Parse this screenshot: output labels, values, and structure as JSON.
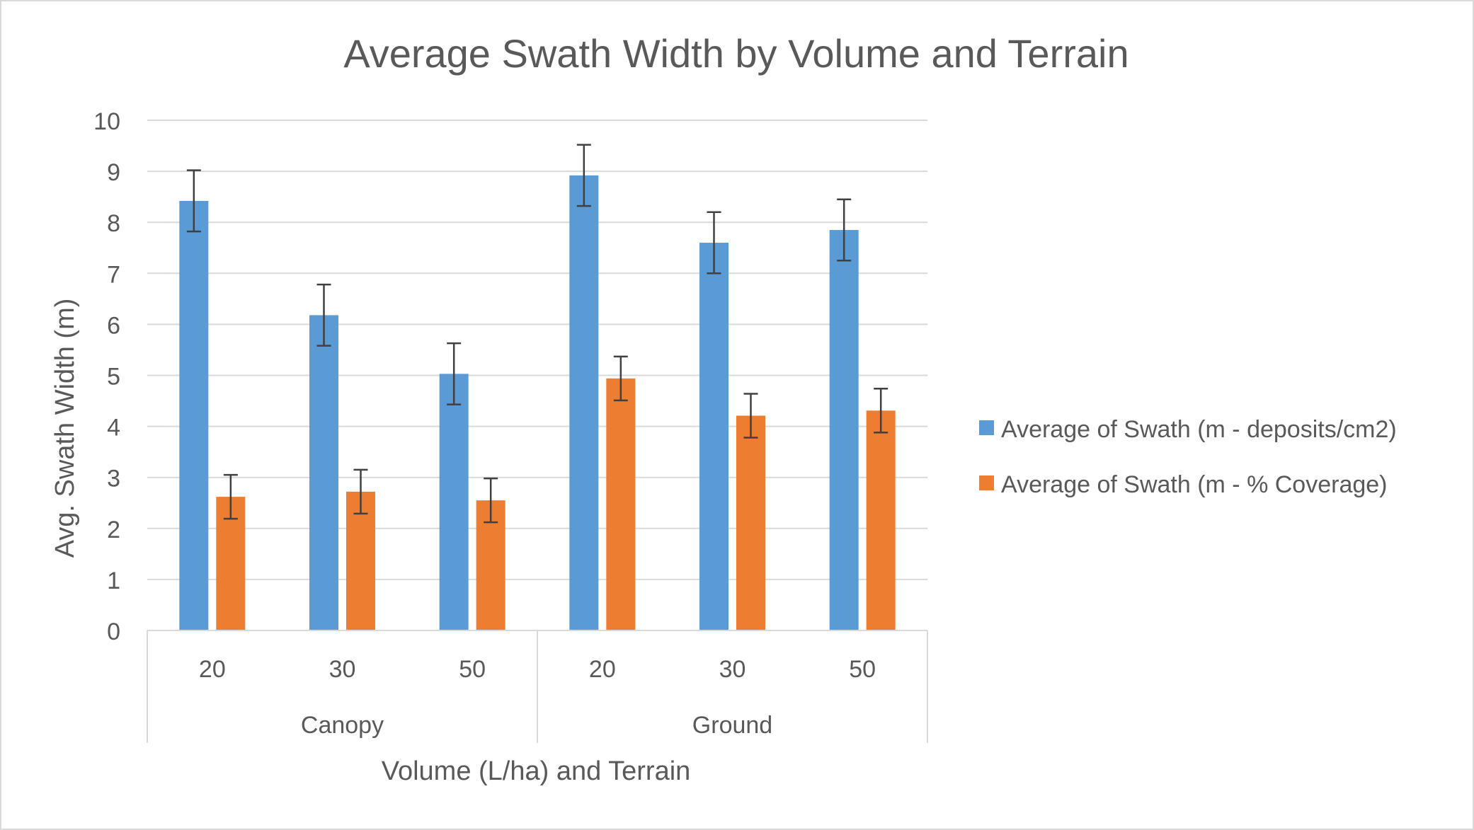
{
  "chart_data": {
    "type": "bar",
    "title": "Average Swath Width by Volume and Terrain",
    "xlabel": "Volume (L/ha) and Terrain",
    "ylabel": "Avg. Swath Width (m)",
    "ylim": [
      0,
      10
    ],
    "yticks": [
      "0",
      "1",
      "2",
      "3",
      "4",
      "5",
      "6",
      "7",
      "8",
      "9",
      "10"
    ],
    "grid": true,
    "legend_position": "right",
    "groups": [
      {
        "label": "Canopy",
        "categories": [
          "20",
          "30",
          "50"
        ]
      },
      {
        "label": "Ground",
        "categories": [
          "20",
          "30",
          "50"
        ]
      }
    ],
    "categories": [
      "20",
      "30",
      "50",
      "20",
      "30",
      "50"
    ],
    "series": [
      {
        "name": "Average of Swath (m - deposits/cm2)",
        "color": "#5B9BD5",
        "values": [
          8.42,
          6.18,
          5.03,
          8.92,
          7.6,
          7.85
        ],
        "error": [
          0.6,
          0.6,
          0.6,
          0.6,
          0.6,
          0.6
        ]
      },
      {
        "name": "Average of Swath (m - % Coverage)",
        "color": "#ED7D31",
        "values": [
          2.62,
          2.72,
          2.55,
          4.94,
          4.21,
          4.31
        ],
        "error": [
          0.43,
          0.43,
          0.43,
          0.43,
          0.43,
          0.43
        ]
      }
    ]
  },
  "colors": {
    "text": "#595959",
    "grid": "#D9D9D9",
    "axis": "#D9D9D9",
    "error_bar": "#404040",
    "border": "#D9D9D9"
  }
}
